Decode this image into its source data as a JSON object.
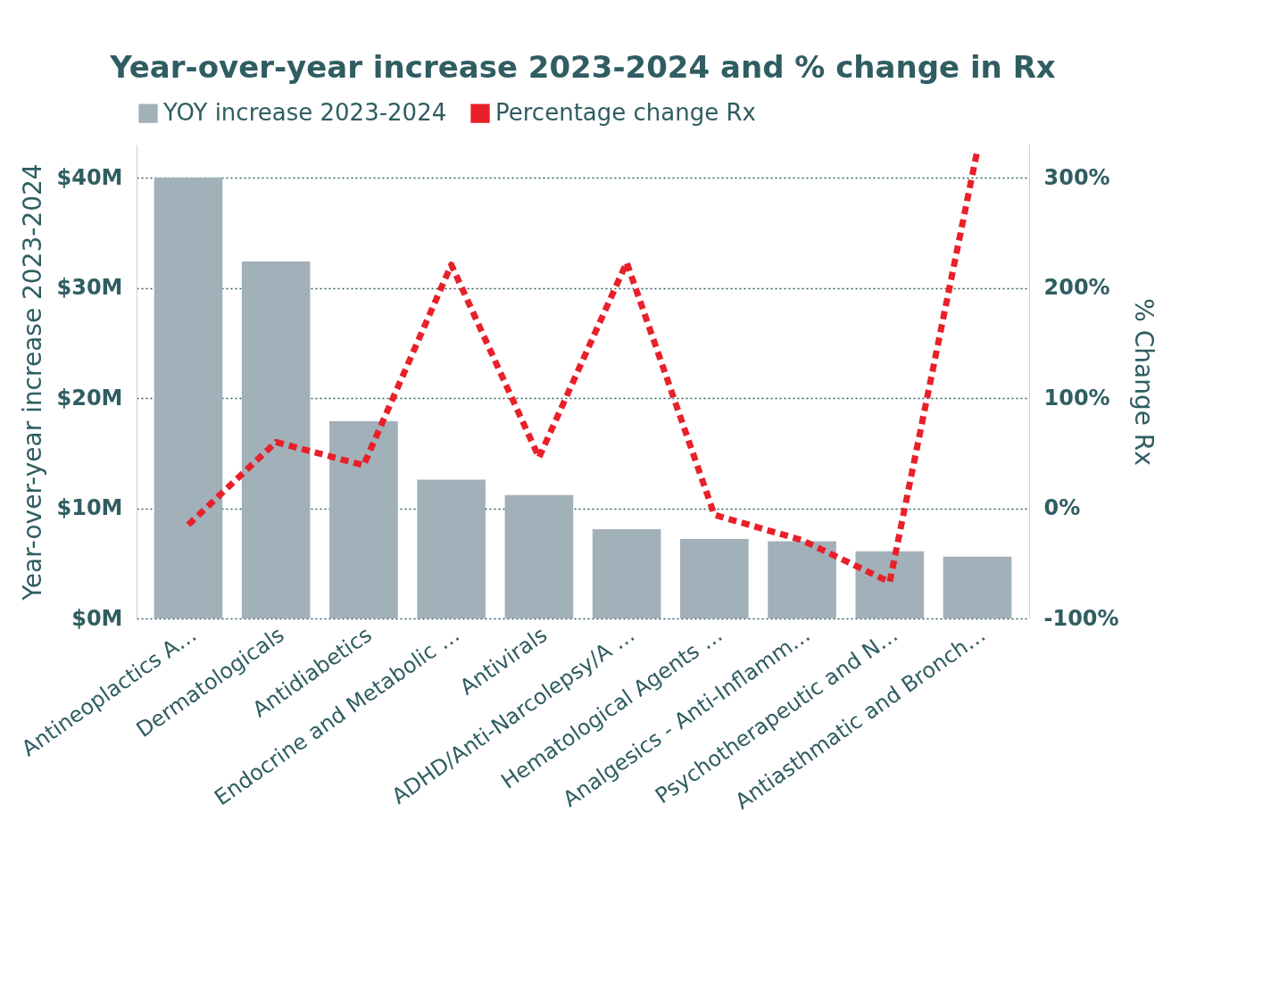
{
  "chart_data": {
    "type": "bar",
    "title": "Year-over-year increase 2023-2024 and % change in Rx",
    "ylabel": "Year-over-year increase 2023-2024",
    "y2label": "% Change Rx",
    "categories": [
      "Antineoplactics A…",
      "Dermatologicals",
      "Antidiabetics",
      "Endocrine and Metabolic …",
      "Antivirals",
      "ADHD/Anti-Narcolepsy/A …",
      "Hematological Agents …",
      "Analgesics - Anti-Inflamm…",
      "Psychotherapeutic and N…",
      "Antiasthmatic and Bronch…"
    ],
    "series": [
      {
        "name": "YOY increase 2023-2024",
        "color": "#a1b0b9",
        "values": [
          40,
          32.4,
          17.9,
          12.6,
          11.2,
          8.1,
          7.2,
          7.0,
          6.1,
          5.6
        ]
      },
      {
        "name": "Percentage change Rx",
        "type": "line",
        "axis": "y2",
        "color": "#e8202a",
        "line_style": "dashed",
        "values": [
          -15,
          60,
          39,
          221,
          46,
          223,
          -6,
          -29,
          -67,
          325
        ]
      }
    ],
    "ylim": [
      0,
      43
    ],
    "yticks": [
      {
        "value": 0,
        "label": "$0M"
      },
      {
        "value": 10,
        "label": "$10M"
      },
      {
        "value": 20,
        "label": "$20M"
      },
      {
        "value": 30,
        "label": "$30M"
      },
      {
        "value": 40,
        "label": "$40M"
      }
    ],
    "y2lim": [
      -100,
      330
    ],
    "y2ticks": [
      {
        "value": -100,
        "label": "-100%"
      },
      {
        "value": 0,
        "label": "0%"
      },
      {
        "value": 100,
        "label": "100%"
      },
      {
        "value": 200,
        "label": "200%"
      },
      {
        "value": 300,
        "label": "300%"
      }
    ],
    "grid": "y",
    "legend": "top"
  }
}
